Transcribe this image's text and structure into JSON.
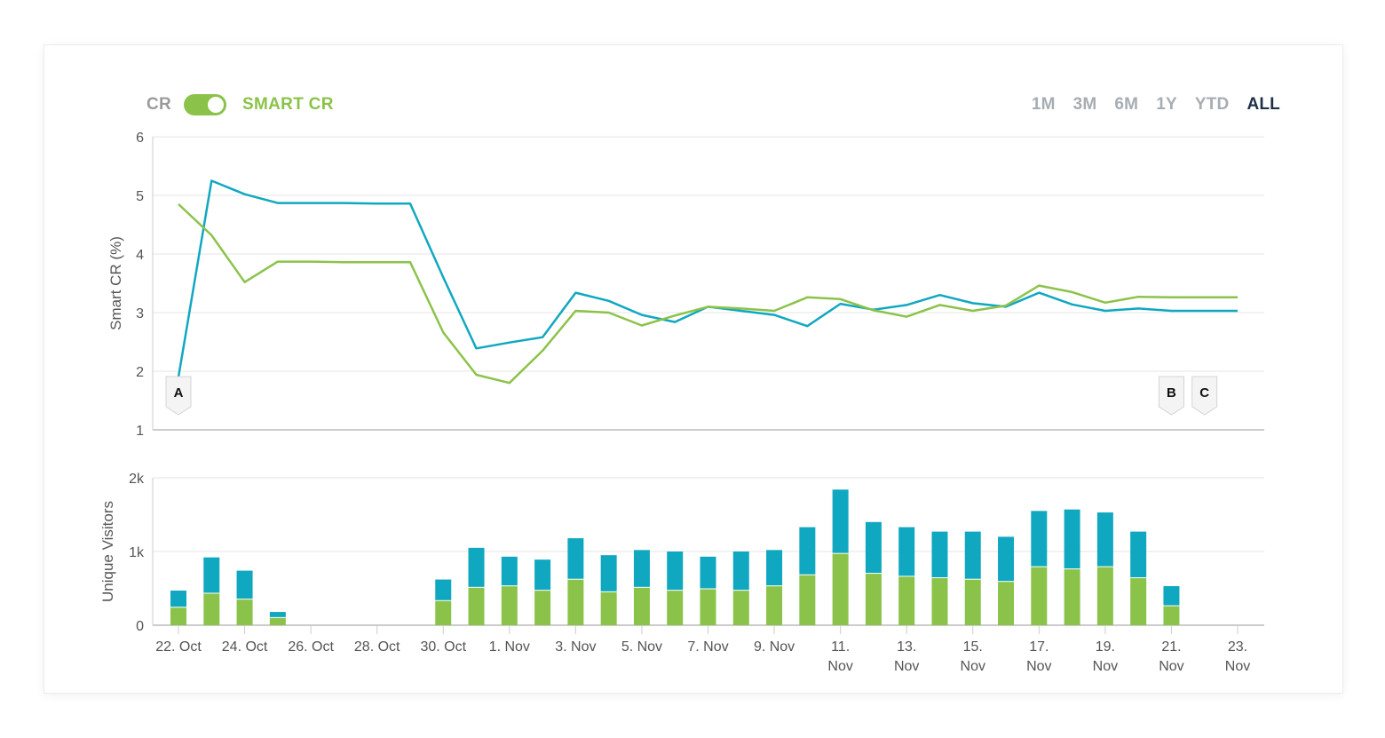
{
  "toggle": {
    "left_label": "CR",
    "right_label": "SMART CR",
    "state": "on"
  },
  "ranges": [
    {
      "label": "1M",
      "active": false
    },
    {
      "label": "3M",
      "active": false
    },
    {
      "label": "6M",
      "active": false
    },
    {
      "label": "1Y",
      "active": false
    },
    {
      "label": "YTD",
      "active": false
    },
    {
      "label": "ALL",
      "active": true
    }
  ],
  "colors": {
    "teal": "#10a8c0",
    "green": "#8bc34a",
    "grid": "#e6e6e6",
    "axis": "#cccccc",
    "active_range": "#1d3147",
    "inactive_range": "#a7adb3"
  },
  "chart_data": [
    {
      "type": "line",
      "ylabel": "Smart CR (%)",
      "ylim": [
        1,
        6
      ],
      "yticks": [
        1,
        2,
        3,
        4,
        5,
        6
      ],
      "grid": true,
      "x_start": "2017-10-22",
      "x_end": "2017-11-23",
      "series": [
        {
          "color": "#10a8c0",
          "points": [
            [
              "2017-10-22",
              1.9
            ],
            [
              "2017-10-23",
              5.25
            ],
            [
              "2017-10-24",
              5.02
            ],
            [
              "2017-10-25",
              4.87
            ],
            [
              "2017-10-26",
              4.87
            ],
            [
              "2017-10-27",
              4.87
            ],
            [
              "2017-10-28",
              4.86
            ],
            [
              "2017-10-29",
              4.86
            ],
            [
              "2017-10-30",
              3.6
            ],
            [
              "2017-10-31",
              2.39
            ],
            [
              "2017-11-01",
              2.49
            ],
            [
              "2017-11-02",
              2.58
            ],
            [
              "2017-11-03",
              3.34
            ],
            [
              "2017-11-04",
              3.2
            ],
            [
              "2017-11-05",
              2.96
            ],
            [
              "2017-11-06",
              2.84
            ],
            [
              "2017-11-07",
              3.1
            ],
            [
              "2017-11-08",
              3.03
            ],
            [
              "2017-11-09",
              2.96
            ],
            [
              "2017-11-10",
              2.77
            ],
            [
              "2017-11-11",
              3.15
            ],
            [
              "2017-11-12",
              3.05
            ],
            [
              "2017-11-13",
              3.13
            ],
            [
              "2017-11-14",
              3.3
            ],
            [
              "2017-11-15",
              3.16
            ],
            [
              "2017-11-16",
              3.1
            ],
            [
              "2017-11-17",
              3.34
            ],
            [
              "2017-11-18",
              3.14
            ],
            [
              "2017-11-19",
              3.03
            ],
            [
              "2017-11-20",
              3.07
            ],
            [
              "2017-11-21",
              3.03
            ],
            [
              "2017-11-22",
              3.03
            ],
            [
              "2017-11-23",
              3.03
            ]
          ]
        },
        {
          "color": "#8bc34a",
          "points": [
            [
              "2017-10-22",
              4.85
            ],
            [
              "2017-10-23",
              4.32
            ],
            [
              "2017-10-24",
              3.52
            ],
            [
              "2017-10-25",
              3.87
            ],
            [
              "2017-10-26",
              3.87
            ],
            [
              "2017-10-27",
              3.86
            ],
            [
              "2017-10-28",
              3.86
            ],
            [
              "2017-10-29",
              3.86
            ],
            [
              "2017-10-30",
              2.66
            ],
            [
              "2017-10-31",
              1.94
            ],
            [
              "2017-11-01",
              1.8
            ],
            [
              "2017-11-02",
              2.35
            ],
            [
              "2017-11-03",
              3.03
            ],
            [
              "2017-11-04",
              3.0
            ],
            [
              "2017-11-05",
              2.78
            ],
            [
              "2017-11-06",
              2.95
            ],
            [
              "2017-11-07",
              3.1
            ],
            [
              "2017-11-08",
              3.07
            ],
            [
              "2017-11-09",
              3.03
            ],
            [
              "2017-11-10",
              3.26
            ],
            [
              "2017-11-11",
              3.23
            ],
            [
              "2017-11-12",
              3.04
            ],
            [
              "2017-11-13",
              2.93
            ],
            [
              "2017-11-14",
              3.13
            ],
            [
              "2017-11-15",
              3.03
            ],
            [
              "2017-11-16",
              3.12
            ],
            [
              "2017-11-17",
              3.46
            ],
            [
              "2017-11-18",
              3.35
            ],
            [
              "2017-11-19",
              3.17
            ],
            [
              "2017-11-20",
              3.27
            ],
            [
              "2017-11-21",
              3.26
            ],
            [
              "2017-11-22",
              3.26
            ],
            [
              "2017-11-23",
              3.26
            ]
          ]
        }
      ],
      "flags": [
        {
          "label": "A",
          "date": "2017-10-22"
        },
        {
          "label": "B",
          "date": "2017-11-21"
        },
        {
          "label": "C",
          "date": "2017-11-22"
        }
      ]
    },
    {
      "type": "bar",
      "stacked": true,
      "ylabel": "Unique Visitors",
      "ylim": [
        0,
        2000
      ],
      "yticks": [
        0,
        1000,
        2000
      ],
      "yticklabels": [
        "0",
        "1k",
        "2k"
      ],
      "grid": true,
      "series": [
        {
          "color": "#8bc34a",
          "part": "lower"
        },
        {
          "color": "#10a8c0",
          "part": "upper"
        }
      ],
      "bars": [
        {
          "date": "2017-10-22",
          "lower": 250,
          "total": 470
        },
        {
          "date": "2017-10-23",
          "lower": 440,
          "total": 920
        },
        {
          "date": "2017-10-24",
          "lower": 360,
          "total": 740
        },
        {
          "date": "2017-10-25",
          "lower": 110,
          "total": 180
        },
        {
          "date": "2017-10-30",
          "lower": 340,
          "total": 620
        },
        {
          "date": "2017-10-31",
          "lower": 520,
          "total": 1050
        },
        {
          "date": "2017-11-01",
          "lower": 540,
          "total": 930
        },
        {
          "date": "2017-11-02",
          "lower": 480,
          "total": 890
        },
        {
          "date": "2017-11-03",
          "lower": 630,
          "total": 1180
        },
        {
          "date": "2017-11-04",
          "lower": 460,
          "total": 950
        },
        {
          "date": "2017-11-05",
          "lower": 520,
          "total": 1020
        },
        {
          "date": "2017-11-06",
          "lower": 480,
          "total": 1000
        },
        {
          "date": "2017-11-07",
          "lower": 500,
          "total": 930
        },
        {
          "date": "2017-11-08",
          "lower": 480,
          "total": 1000
        },
        {
          "date": "2017-11-09",
          "lower": 540,
          "total": 1020
        },
        {
          "date": "2017-11-10",
          "lower": 690,
          "total": 1330
        },
        {
          "date": "2017-11-11",
          "lower": 980,
          "total": 1840
        },
        {
          "date": "2017-11-12",
          "lower": 710,
          "total": 1400
        },
        {
          "date": "2017-11-13",
          "lower": 670,
          "total": 1330
        },
        {
          "date": "2017-11-14",
          "lower": 650,
          "total": 1270
        },
        {
          "date": "2017-11-15",
          "lower": 630,
          "total": 1270
        },
        {
          "date": "2017-11-16",
          "lower": 600,
          "total": 1200
        },
        {
          "date": "2017-11-17",
          "lower": 800,
          "total": 1550
        },
        {
          "date": "2017-11-18",
          "lower": 770,
          "total": 1570
        },
        {
          "date": "2017-11-19",
          "lower": 800,
          "total": 1530
        },
        {
          "date": "2017-11-20",
          "lower": 650,
          "total": 1270
        },
        {
          "date": "2017-11-21",
          "lower": 270,
          "total": 530
        }
      ]
    }
  ],
  "x_axis": {
    "ticks": [
      {
        "date": "2017-10-22",
        "label": [
          "22. Oct"
        ]
      },
      {
        "date": "2017-10-24",
        "label": [
          "24. Oct"
        ]
      },
      {
        "date": "2017-10-26",
        "label": [
          "26. Oct"
        ]
      },
      {
        "date": "2017-10-28",
        "label": [
          "28. Oct"
        ]
      },
      {
        "date": "2017-10-30",
        "label": [
          "30. Oct"
        ]
      },
      {
        "date": "2017-11-01",
        "label": [
          "1. Nov"
        ]
      },
      {
        "date": "2017-11-03",
        "label": [
          "3. Nov"
        ]
      },
      {
        "date": "2017-11-05",
        "label": [
          "5. Nov"
        ]
      },
      {
        "date": "2017-11-07",
        "label": [
          "7. Nov"
        ]
      },
      {
        "date": "2017-11-09",
        "label": [
          "9. Nov"
        ]
      },
      {
        "date": "2017-11-11",
        "label": [
          "11.",
          "Nov"
        ]
      },
      {
        "date": "2017-11-13",
        "label": [
          "13.",
          "Nov"
        ]
      },
      {
        "date": "2017-11-15",
        "label": [
          "15.",
          "Nov"
        ]
      },
      {
        "date": "2017-11-17",
        "label": [
          "17.",
          "Nov"
        ]
      },
      {
        "date": "2017-11-19",
        "label": [
          "19.",
          "Nov"
        ]
      },
      {
        "date": "2017-11-21",
        "label": [
          "21.",
          "Nov"
        ]
      },
      {
        "date": "2017-11-23",
        "label": [
          "23.",
          "Nov"
        ]
      }
    ]
  }
}
